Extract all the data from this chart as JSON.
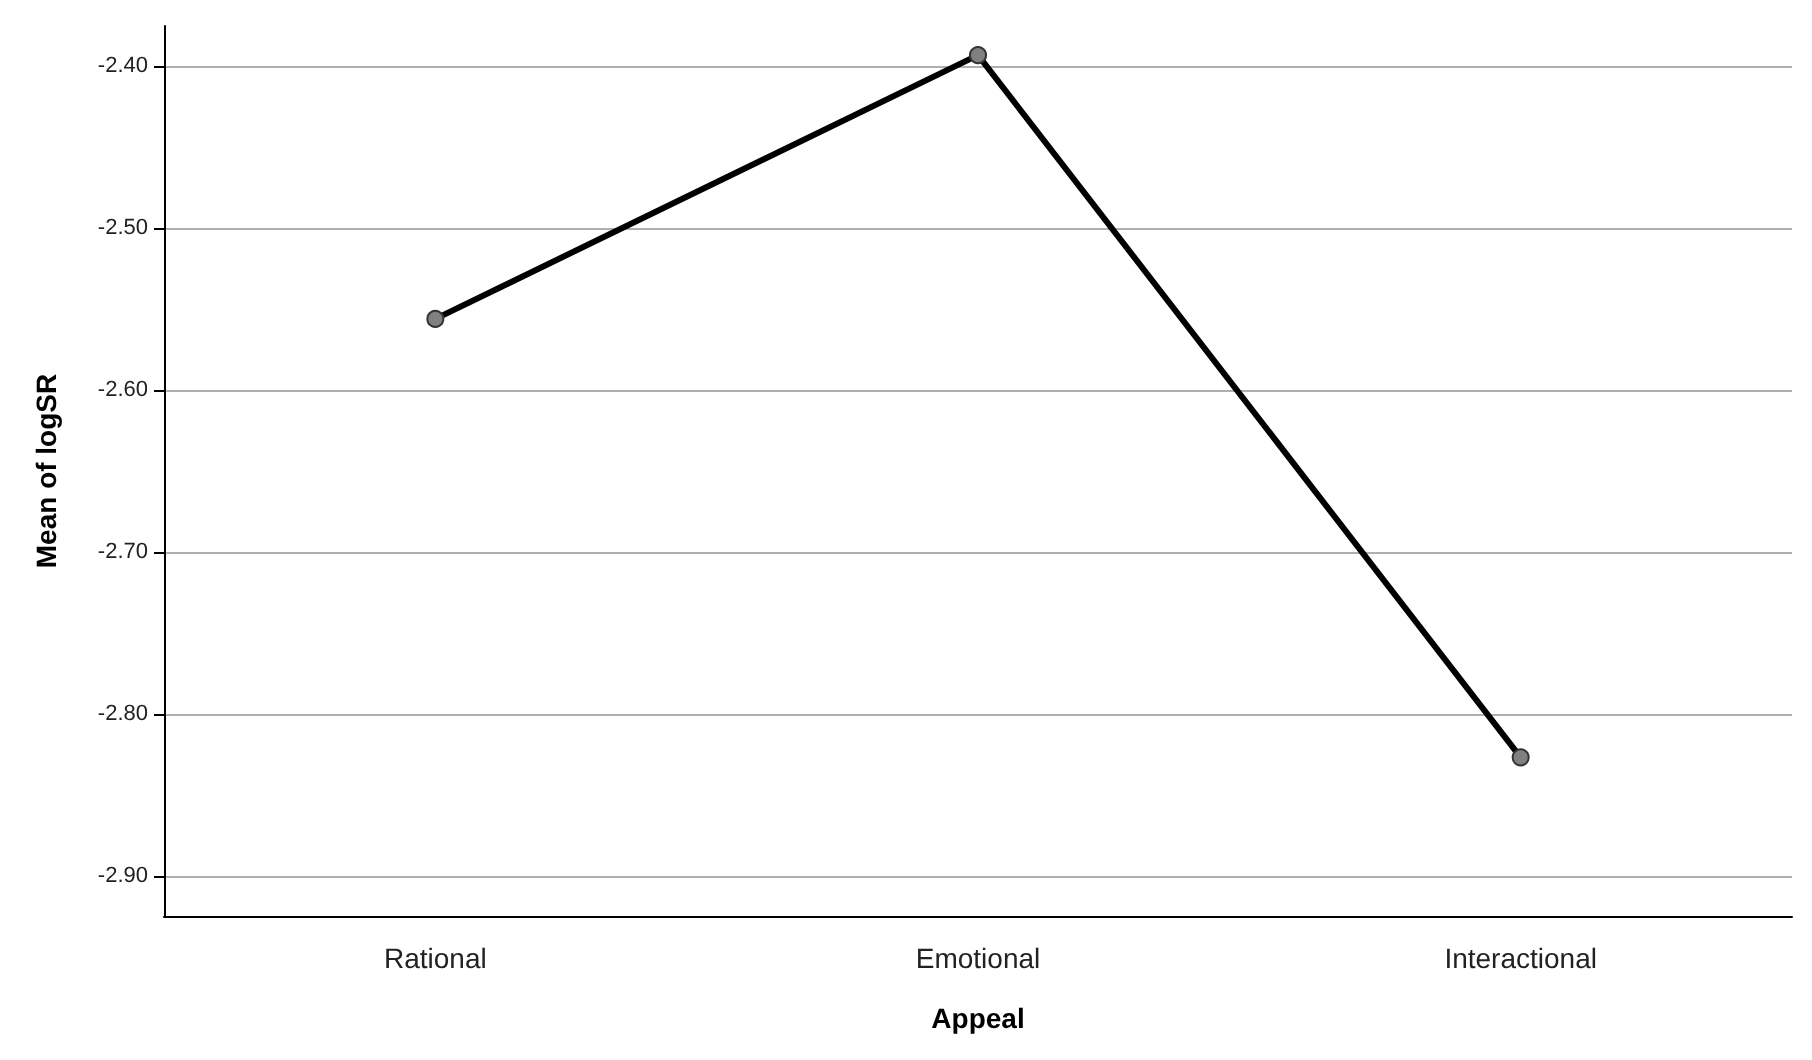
{
  "chart_data": {
    "type": "line",
    "xlabel": "Appeal",
    "ylabel": "Mean of logSR",
    "categories": [
      "Rational",
      "Emotional",
      "Interactional"
    ],
    "series": [
      {
        "color": "#000000",
        "values": [
          -2.556,
          -2.393,
          -2.827
        ]
      }
    ],
    "ylim": [
      -2.925,
      -2.375
    ],
    "yticks": [
      {
        "value": -2.9,
        "label": "-2.90"
      },
      {
        "value": -2.8,
        "label": "-2.80"
      },
      {
        "value": -2.7,
        "label": "-2.70"
      },
      {
        "value": -2.6,
        "label": "-2.60"
      },
      {
        "value": -2.5,
        "label": "-2.50"
      },
      {
        "value": -2.4,
        "label": "-2.40"
      }
    ],
    "grid": "y",
    "marker": "circle",
    "line_style": "solid"
  }
}
